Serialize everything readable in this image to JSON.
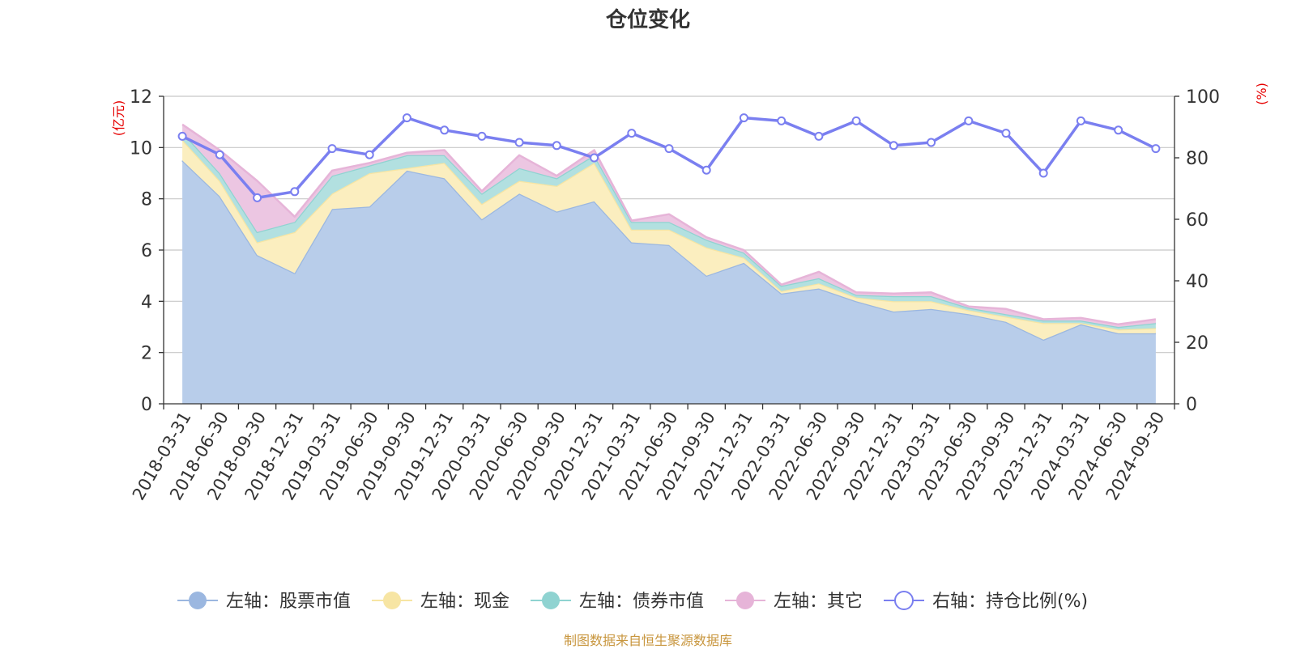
{
  "chart_data": {
    "type": "area",
    "title": "仓位变化",
    "left_axis": {
      "unit_label": "亿元",
      "range": [
        0,
        12
      ],
      "ticks": [
        0,
        2,
        4,
        6,
        8,
        10,
        12
      ]
    },
    "right_axis": {
      "unit_label": "%",
      "range": [
        0,
        100
      ],
      "ticks": [
        0,
        20,
        40,
        60,
        80,
        100
      ]
    },
    "categories": [
      "2018-03-31",
      "2018-06-30",
      "2018-09-30",
      "2018-12-31",
      "2019-03-31",
      "2019-06-30",
      "2019-09-30",
      "2019-12-31",
      "2020-03-31",
      "2020-06-30",
      "2020-09-30",
      "2020-12-31",
      "2021-03-31",
      "2021-06-30",
      "2021-09-30",
      "2021-12-31",
      "2022-03-31",
      "2022-06-30",
      "2022-09-30",
      "2022-12-31",
      "2023-03-31",
      "2023-06-30",
      "2023-09-30",
      "2023-12-31",
      "2024-03-31",
      "2024-06-30",
      "2024-09-30"
    ],
    "stacked_series": [
      {
        "name": "左轴：股票市值",
        "axis": "left",
        "color": "#9bb7e0",
        "fill": "#b8cdea",
        "values": [
          9.5,
          8.1,
          5.8,
          5.1,
          7.6,
          7.7,
          9.1,
          8.8,
          7.2,
          8.2,
          7.5,
          7.9,
          6.3,
          6.2,
          5.0,
          5.5,
          4.3,
          4.5,
          4.0,
          3.6,
          3.7,
          3.5,
          3.2,
          2.5,
          3.1,
          2.75,
          2.75
        ]
      },
      {
        "name": "左轴：现金",
        "axis": "left",
        "color": "#f7e5a3",
        "fill": "#fbeebf",
        "values": [
          0.8,
          0.6,
          0.5,
          1.6,
          0.6,
          1.3,
          0.1,
          0.6,
          0.6,
          0.5,
          1.0,
          1.5,
          0.5,
          0.6,
          1.1,
          0.2,
          0.1,
          0.2,
          0.15,
          0.4,
          0.3,
          0.15,
          0.2,
          0.65,
          0.05,
          0.15,
          0.2
        ]
      },
      {
        "name": "左轴：债券市值",
        "axis": "left",
        "color": "#8fd3d1",
        "fill": "#b2e0e0",
        "values": [
          0.3,
          0.3,
          0.4,
          0.4,
          0.7,
          0.3,
          0.5,
          0.3,
          0.4,
          0.5,
          0.3,
          0.3,
          0.3,
          0.3,
          0.3,
          0.2,
          0.2,
          0.2,
          0.1,
          0.2,
          0.2,
          0.1,
          0.1,
          0.1,
          0.1,
          0.1,
          0.2
        ]
      },
      {
        "name": "左轴：其它",
        "axis": "left",
        "color": "#e6b4d8",
        "fill": "#ecc6e2",
        "values": [
          0.3,
          0.9,
          2.0,
          0.2,
          0.2,
          0.1,
          0.1,
          0.2,
          0.1,
          0.5,
          0.1,
          0.2,
          0.05,
          0.3,
          0.1,
          0.1,
          0.05,
          0.25,
          0.1,
          0.1,
          0.15,
          0.05,
          0.2,
          0.05,
          0.1,
          0.1,
          0.15
        ]
      }
    ],
    "line_series": {
      "name": "右轴：持仓比例(%)",
      "axis": "right",
      "color": "#7a7ff0",
      "values": [
        87,
        81,
        67,
        69,
        83,
        81,
        93,
        89,
        87,
        85,
        84,
        80,
        88,
        83,
        76,
        93,
        92,
        87,
        92,
        84,
        85,
        92,
        88,
        75,
        92,
        89,
        83
      ]
    },
    "source_note": "制图数据来自恒生聚源数据库"
  }
}
